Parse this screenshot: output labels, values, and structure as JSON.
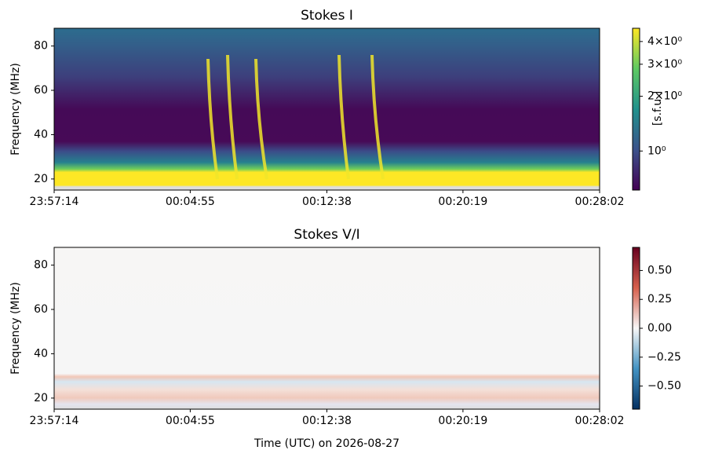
{
  "chart_data": [
    {
      "type": "heatmap",
      "title": "Stokes I",
      "ylabel": "Frequency (MHz)",
      "xlim": [
        0,
        1848
      ],
      "xticks": [
        {
          "value": 0,
          "label": "23:57:14"
        },
        {
          "value": 461,
          "label": "00:04:55"
        },
        {
          "value": 924,
          "label": "00:12:38"
        },
        {
          "value": 1385,
          "label": "00:20:19"
        },
        {
          "value": 1848,
          "label": "00:28:02"
        }
      ],
      "ylim": [
        15,
        88
      ],
      "yticks": [
        20,
        40,
        60,
        80
      ],
      "colorbar": {
        "label": "[s.f.u.]",
        "scale": "log",
        "colormap": "viridis",
        "lim": [
          0.61,
          4.73
        ],
        "ticks": [
          {
            "value": 4,
            "label": "4×10⁰"
          },
          {
            "value": 3,
            "label": "3×10⁰"
          },
          {
            "value": 2,
            "label": "2×10⁰"
          },
          {
            "value": 1,
            "label": "10⁰"
          }
        ]
      }
    },
    {
      "type": "heatmap",
      "title": "Stokes V/I",
      "ylabel": "Frequency (MHz)",
      "xlabel": "Time (UTC) on 2026-08-27",
      "xlim": [
        0,
        1848
      ],
      "xticks": [
        {
          "value": 0,
          "label": "23:57:14"
        },
        {
          "value": 461,
          "label": "00:04:55"
        },
        {
          "value": 924,
          "label": "00:12:38"
        },
        {
          "value": 1385,
          "label": "00:20:19"
        },
        {
          "value": 1848,
          "label": "00:28:02"
        }
      ],
      "ylim": [
        15,
        88
      ],
      "yticks": [
        20,
        40,
        60,
        80
      ],
      "colorbar": {
        "scale": "linear",
        "colormap": "RdBu_r",
        "lim": [
          -0.7,
          0.7
        ],
        "ticks": [
          {
            "value": 0.5,
            "label": "0.50"
          },
          {
            "value": 0.25,
            "label": "0.25"
          },
          {
            "value": 0,
            "label": "0.00"
          },
          {
            "value": -0.25,
            "label": "−0.25"
          },
          {
            "value": -0.5,
            "label": "−0.50"
          }
        ]
      }
    }
  ]
}
